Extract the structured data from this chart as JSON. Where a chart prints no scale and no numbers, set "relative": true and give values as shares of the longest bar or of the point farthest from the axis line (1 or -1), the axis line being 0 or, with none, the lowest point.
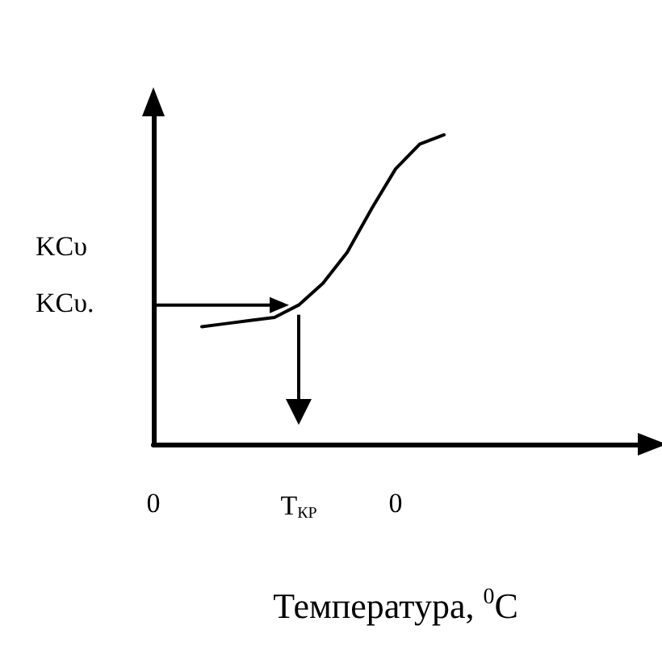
{
  "chart_data": {
    "type": "line",
    "relative": true,
    "xlabel": "Температура, $^{0}$C",
    "categories": [
      "0",
      null,
      null,
      null,
      null,
      null,
      "T$_{КР}$",
      null,
      null,
      null,
      "0",
      null,
      null,
      null,
      null,
      null,
      null,
      null,
      null,
      null,
      null
    ],
    "values": [
      null,
      null,
      0.38,
      0.39,
      0.4,
      0.41,
      0.45,
      0.52,
      0.62,
      0.76,
      0.89,
      0.97,
      1.0,
      null,
      null,
      null,
      null,
      null,
      null,
      null,
      null
    ],
    "color": "#000000",
    "marker": "none",
    "line_style": "solid",
    "grid": false,
    "annotations": [
      "KCυ",
      "KCυ."
    ]
  }
}
